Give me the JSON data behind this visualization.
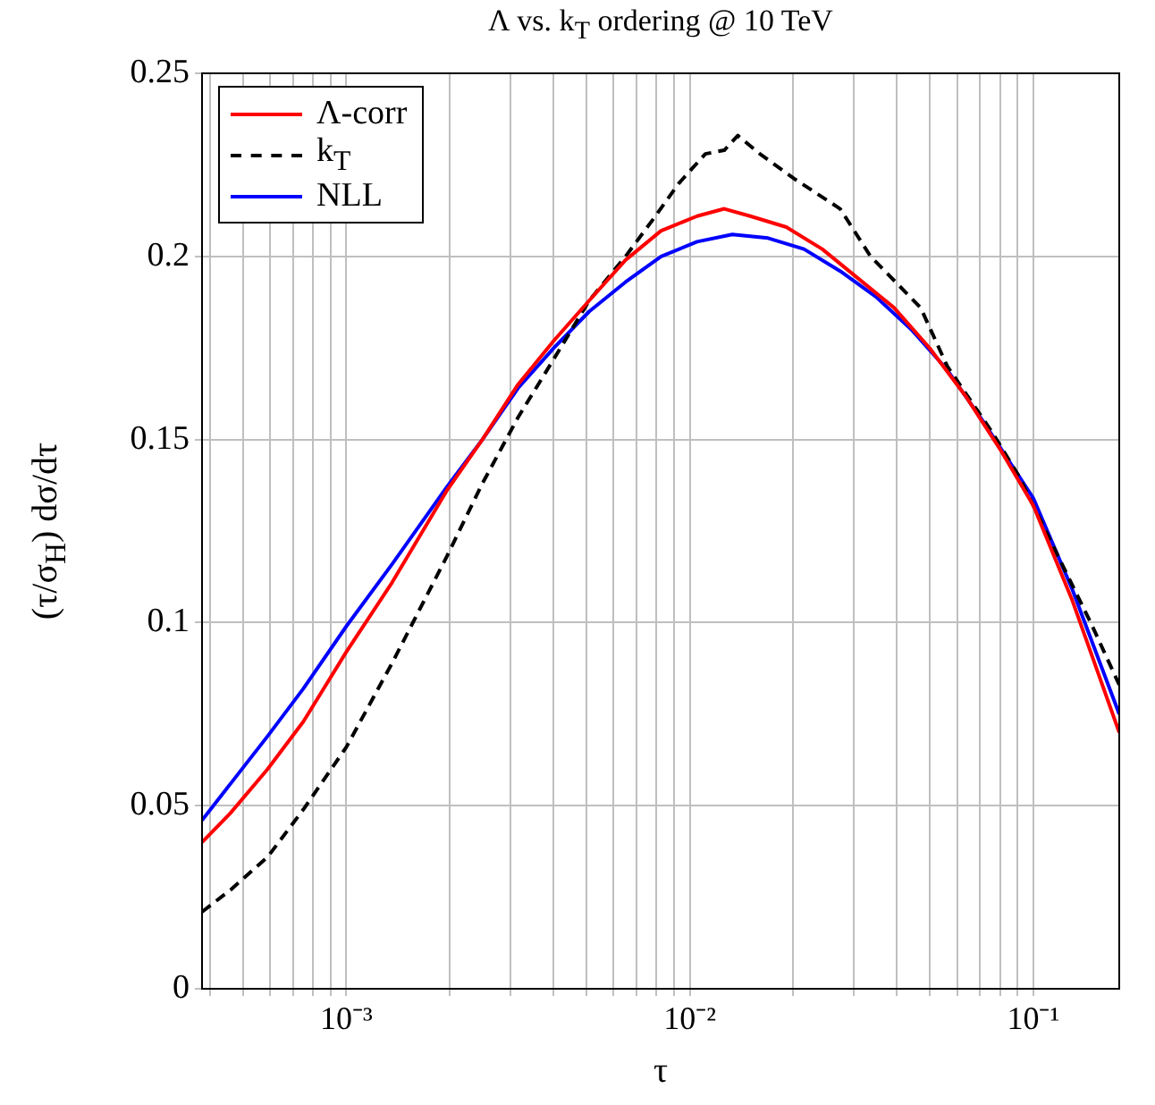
{
  "chart_data": {
    "type": "line",
    "title": "Λ vs. k$_{T}$ ordering @ 10 TeV",
    "xlabel": "τ",
    "ylabel": "(τ/σ$_{H}$) dσ/dτ",
    "log": "x",
    "grid": true,
    "legend": "top left",
    "marker": "none",
    "xlim": [
      0.00038,
      0.178
    ],
    "xticks": [
      {
        "value": 0.0004,
        "label": null
      },
      {
        "value": 0.0005,
        "label": null
      },
      {
        "value": 0.0006,
        "label": null
      },
      {
        "value": 0.0007,
        "label": null
      },
      {
        "value": 0.0008,
        "label": null
      },
      {
        "value": 0.0009,
        "label": null
      },
      {
        "value": 0.001,
        "label": "10⁻³"
      },
      {
        "value": 0.002,
        "label": null
      },
      {
        "value": 0.003,
        "label": null
      },
      {
        "value": 0.004,
        "label": null
      },
      {
        "value": 0.005,
        "label": null
      },
      {
        "value": 0.006,
        "label": null
      },
      {
        "value": 0.007,
        "label": null
      },
      {
        "value": 0.008,
        "label": null
      },
      {
        "value": 0.009,
        "label": null
      },
      {
        "value": 0.01,
        "label": "10⁻²"
      },
      {
        "value": 0.02,
        "label": null
      },
      {
        "value": 0.03,
        "label": null
      },
      {
        "value": 0.04,
        "label": null
      },
      {
        "value": 0.05,
        "label": null
      },
      {
        "value": 0.06,
        "label": null
      },
      {
        "value": 0.07,
        "label": null
      },
      {
        "value": 0.08,
        "label": null
      },
      {
        "value": 0.09,
        "label": null
      },
      {
        "value": 0.1,
        "label": "10⁻¹"
      }
    ],
    "ylim": [
      0,
      0.25
    ],
    "yticks": [
      0,
      0.05,
      0.1,
      0.15,
      0.2,
      0.25
    ],
    "series": [
      {
        "name": "Λ-corr",
        "color": "#ff0000",
        "line_style": "solid",
        "x": [
          0.00038,
          0.00046,
          0.00059,
          0.00075,
          0.001,
          0.00136,
          0.00196,
          0.00249,
          0.00316,
          0.00402,
          0.0051,
          0.0065,
          0.00825,
          0.0105,
          0.0126,
          0.015,
          0.0191,
          0.0243,
          0.0309,
          0.0393,
          0.0499,
          0.0634,
          0.0805,
          0.1,
          0.13,
          0.178
        ],
        "values": [
          0.04,
          0.048,
          0.06,
          0.073,
          0.092,
          0.111,
          0.136,
          0.15,
          0.165,
          0.177,
          0.188,
          0.199,
          0.207,
          0.211,
          0.213,
          0.211,
          0.208,
          0.202,
          0.194,
          0.186,
          0.175,
          0.162,
          0.147,
          0.132,
          0.106,
          0.07
        ]
      },
      {
        "name": "k$_{T}$",
        "color": "#000000",
        "line_style": "dashed",
        "x": [
          0.00038,
          0.00046,
          0.00059,
          0.00075,
          0.001,
          0.00136,
          0.00196,
          0.00249,
          0.00316,
          0.00402,
          0.0051,
          0.0065,
          0.0078,
          0.0093,
          0.0111,
          0.0126,
          0.0138,
          0.016,
          0.0203,
          0.0274,
          0.0336,
          0.047,
          0.0562,
          0.0759,
          0.0908,
          0.1155,
          0.147,
          0.178
        ],
        "values": [
          0.021,
          0.027,
          0.036,
          0.049,
          0.066,
          0.089,
          0.118,
          0.138,
          0.156,
          0.172,
          0.188,
          0.2,
          0.21,
          0.22,
          0.228,
          0.229,
          0.233,
          0.228,
          0.221,
          0.213,
          0.2,
          0.186,
          0.17,
          0.152,
          0.14,
          0.12,
          0.1,
          0.083
        ]
      },
      {
        "name": "NLL",
        "color": "#0000ff",
        "line_style": "solid",
        "x": [
          0.00038,
          0.00046,
          0.00059,
          0.00075,
          0.001,
          0.00136,
          0.00196,
          0.00249,
          0.00316,
          0.00402,
          0.0051,
          0.0065,
          0.00825,
          0.0105,
          0.0133,
          0.0169,
          0.0215,
          0.0274,
          0.0348,
          0.0442,
          0.0562,
          0.0714,
          0.1,
          0.13,
          0.178
        ],
        "values": [
          0.046,
          0.056,
          0.069,
          0.082,
          0.099,
          0.116,
          0.137,
          0.15,
          0.164,
          0.175,
          0.185,
          0.193,
          0.2,
          0.204,
          0.206,
          0.205,
          0.202,
          0.196,
          0.189,
          0.18,
          0.169,
          0.155,
          0.134,
          0.109,
          0.075
        ]
      }
    ]
  }
}
